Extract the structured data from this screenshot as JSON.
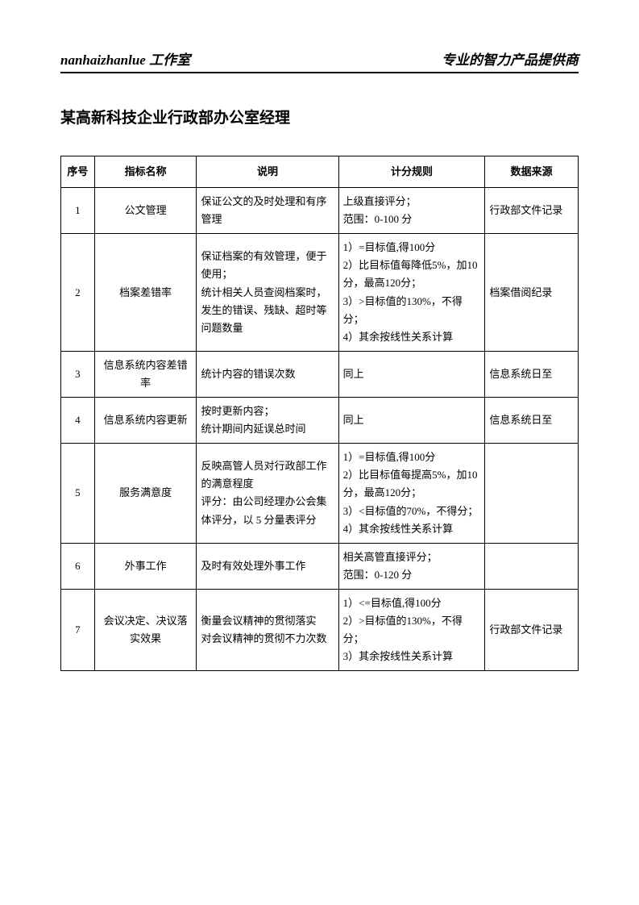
{
  "header": {
    "left": "nanhaizhanlue 工作室",
    "right": "专业的智力产品提供商"
  },
  "title": "某高新科技企业行政部办公室经理",
  "table": {
    "columns": [
      "序号",
      "指标名称",
      "说明",
      "计分规则",
      "数据来源"
    ],
    "rows": [
      {
        "num": "1",
        "name": "公文管理",
        "desc": "保证公文的及时处理和有序管理",
        "rule": "上级直接评分；\n范围：0-100 分",
        "source": "行政部文件记录"
      },
      {
        "num": "2",
        "name": "档案差错率",
        "desc": "保证档案的有效管理，便于使用；\n统计相关人员查阅档案时，发生的错误、残缺、超时等问题数量",
        "rule": "1）=目标值,得100分\n2）比目标值每降低5%，加10分，最高120分；\n3）>目标值的130%，不得分；\n4）其余按线性关系计算",
        "source": "档案借阅纪录"
      },
      {
        "num": "3",
        "name": "信息系统内容差错率",
        "desc": "统计内容的错误次数",
        "rule": "同上",
        "source": "信息系统日至"
      },
      {
        "num": "4",
        "name": "信息系统内容更新",
        "desc": "按时更新内容；\n统计期间内延误总时间",
        "rule": "同上",
        "source": "信息系统日至"
      },
      {
        "num": "5",
        "name": "服务满意度",
        "desc": "反映高管人员对行政部工作的满意程度\n评分：由公司经理办公会集体评分，以 5 分量表评分",
        "rule": "1）=目标值,得100分\n2）比目标值每提高5%，加10分，最高120分；\n3）<目标值的70%，不得分；\n4）其余按线性关系计算",
        "source": ""
      },
      {
        "num": "6",
        "name": "外事工作",
        "desc": "及时有效处理外事工作",
        "rule": "相关高管直接评分；\n范围：0-120 分",
        "source": ""
      },
      {
        "num": "7",
        "name": "会议决定、决议落实效果",
        "desc": "衡量会议精神的贯彻落实\n对会议精神的贯彻不力次数",
        "rule": "1）<=目标值,得100分\n2）>目标值的130%，不得分；\n3）其余按线性关系计算",
        "source": "行政部文件记录"
      }
    ]
  }
}
